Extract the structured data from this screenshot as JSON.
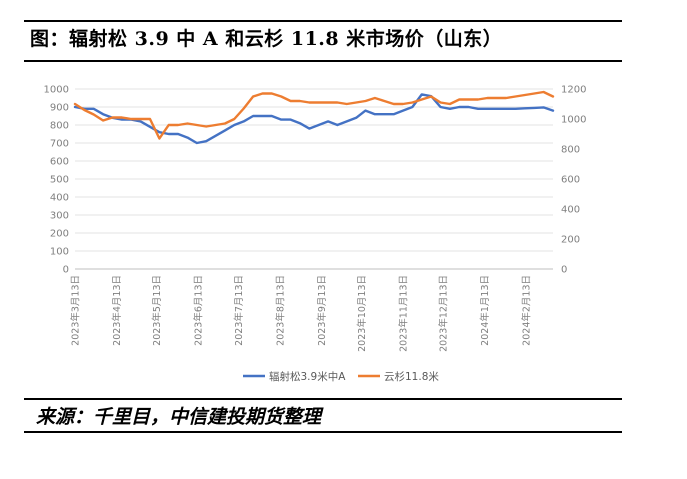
{
  "header": {
    "title": "图：辐射松 3.9 中 A 和云杉 11.8 米市场价（山东）"
  },
  "footer": {
    "source": "来源：千里目，中信建投期货整理"
  },
  "chart_data": {
    "type": "line",
    "x": [
      "2023-03-13",
      "2023-03-20",
      "2023-03-27",
      "2023-04-03",
      "2023-04-10",
      "2023-04-17",
      "2023-04-24",
      "2023-05-01",
      "2023-05-08",
      "2023-05-15",
      "2023-05-22",
      "2023-05-29",
      "2023-06-05",
      "2023-06-12",
      "2023-06-19",
      "2023-06-26",
      "2023-07-03",
      "2023-07-10",
      "2023-07-17",
      "2023-07-24",
      "2023-07-31",
      "2023-08-07",
      "2023-08-14",
      "2023-08-21",
      "2023-08-28",
      "2023-09-04",
      "2023-09-11",
      "2023-09-18",
      "2023-09-25",
      "2023-10-02",
      "2023-10-09",
      "2023-10-16",
      "2023-10-23",
      "2023-10-30",
      "2023-11-06",
      "2023-11-13",
      "2023-11-20",
      "2023-11-27",
      "2023-12-04",
      "2023-12-11",
      "2023-12-18",
      "2023-12-25",
      "2024-01-01",
      "2024-01-08",
      "2024-01-15",
      "2024-01-22",
      "2024-01-29",
      "2024-02-05",
      "2024-02-12",
      "2024-02-19",
      "2024-02-26",
      "2024-03-04"
    ],
    "x_tick_labels": [
      "2023年3月13日",
      "2023年4月13日",
      "2023年5月13日",
      "2023年6月13日",
      "2023年7月13日",
      "2023年8月13日",
      "2023年9月13日",
      "2023年10月13日",
      "2023年11月13日",
      "2023年12月13日",
      "2024年1月13日",
      "2024年2月13日"
    ],
    "x_tick_dates": [
      "2023-03-13",
      "2023-04-13",
      "2023-05-13",
      "2023-06-13",
      "2023-07-13",
      "2023-08-13",
      "2023-09-13",
      "2023-10-13",
      "2023-11-13",
      "2023-12-13",
      "2024-01-13",
      "2024-02-13"
    ],
    "y_left": {
      "min": 0,
      "max": 1000,
      "ticks": [
        0,
        100,
        200,
        300,
        400,
        500,
        600,
        700,
        800,
        900,
        1000
      ]
    },
    "y_right": {
      "min": 0,
      "max": 1200,
      "ticks": [
        0,
        200,
        400,
        600,
        800,
        1000,
        1200
      ]
    },
    "grid": true,
    "legend_position": "bottom",
    "series": [
      {
        "name": "辐射松3.9米中A",
        "axis": "left",
        "color": "#4472c4",
        "values": [
          900,
          890,
          890,
          860,
          840,
          830,
          830,
          820,
          790,
          760,
          750,
          750,
          730,
          700,
          710,
          740,
          770,
          800,
          820,
          850,
          850,
          850,
          830,
          830,
          810,
          780,
          800,
          820,
          800,
          820,
          840,
          880,
          860,
          860,
          860,
          880,
          900,
          970,
          960,
          900,
          890,
          900,
          900,
          890,
          890,
          890,
          890,
          890,
          893,
          895,
          898,
          880
        ]
      },
      {
        "name": "云杉11.8米",
        "axis": "right",
        "color": "#ed7d31",
        "values": [
          1100,
          1060,
          1030,
          990,
          1010,
          1010,
          1000,
          1000,
          1000,
          870,
          960,
          960,
          970,
          960,
          950,
          960,
          970,
          1000,
          1070,
          1150,
          1170,
          1170,
          1150,
          1120,
          1120,
          1110,
          1110,
          1110,
          1110,
          1100,
          1110,
          1120,
          1140,
          1120,
          1100,
          1100,
          1110,
          1130,
          1150,
          1110,
          1100,
          1130,
          1130,
          1130,
          1140,
          1140,
          1140,
          1150,
          1160,
          1170,
          1180,
          1150
        ]
      }
    ]
  }
}
